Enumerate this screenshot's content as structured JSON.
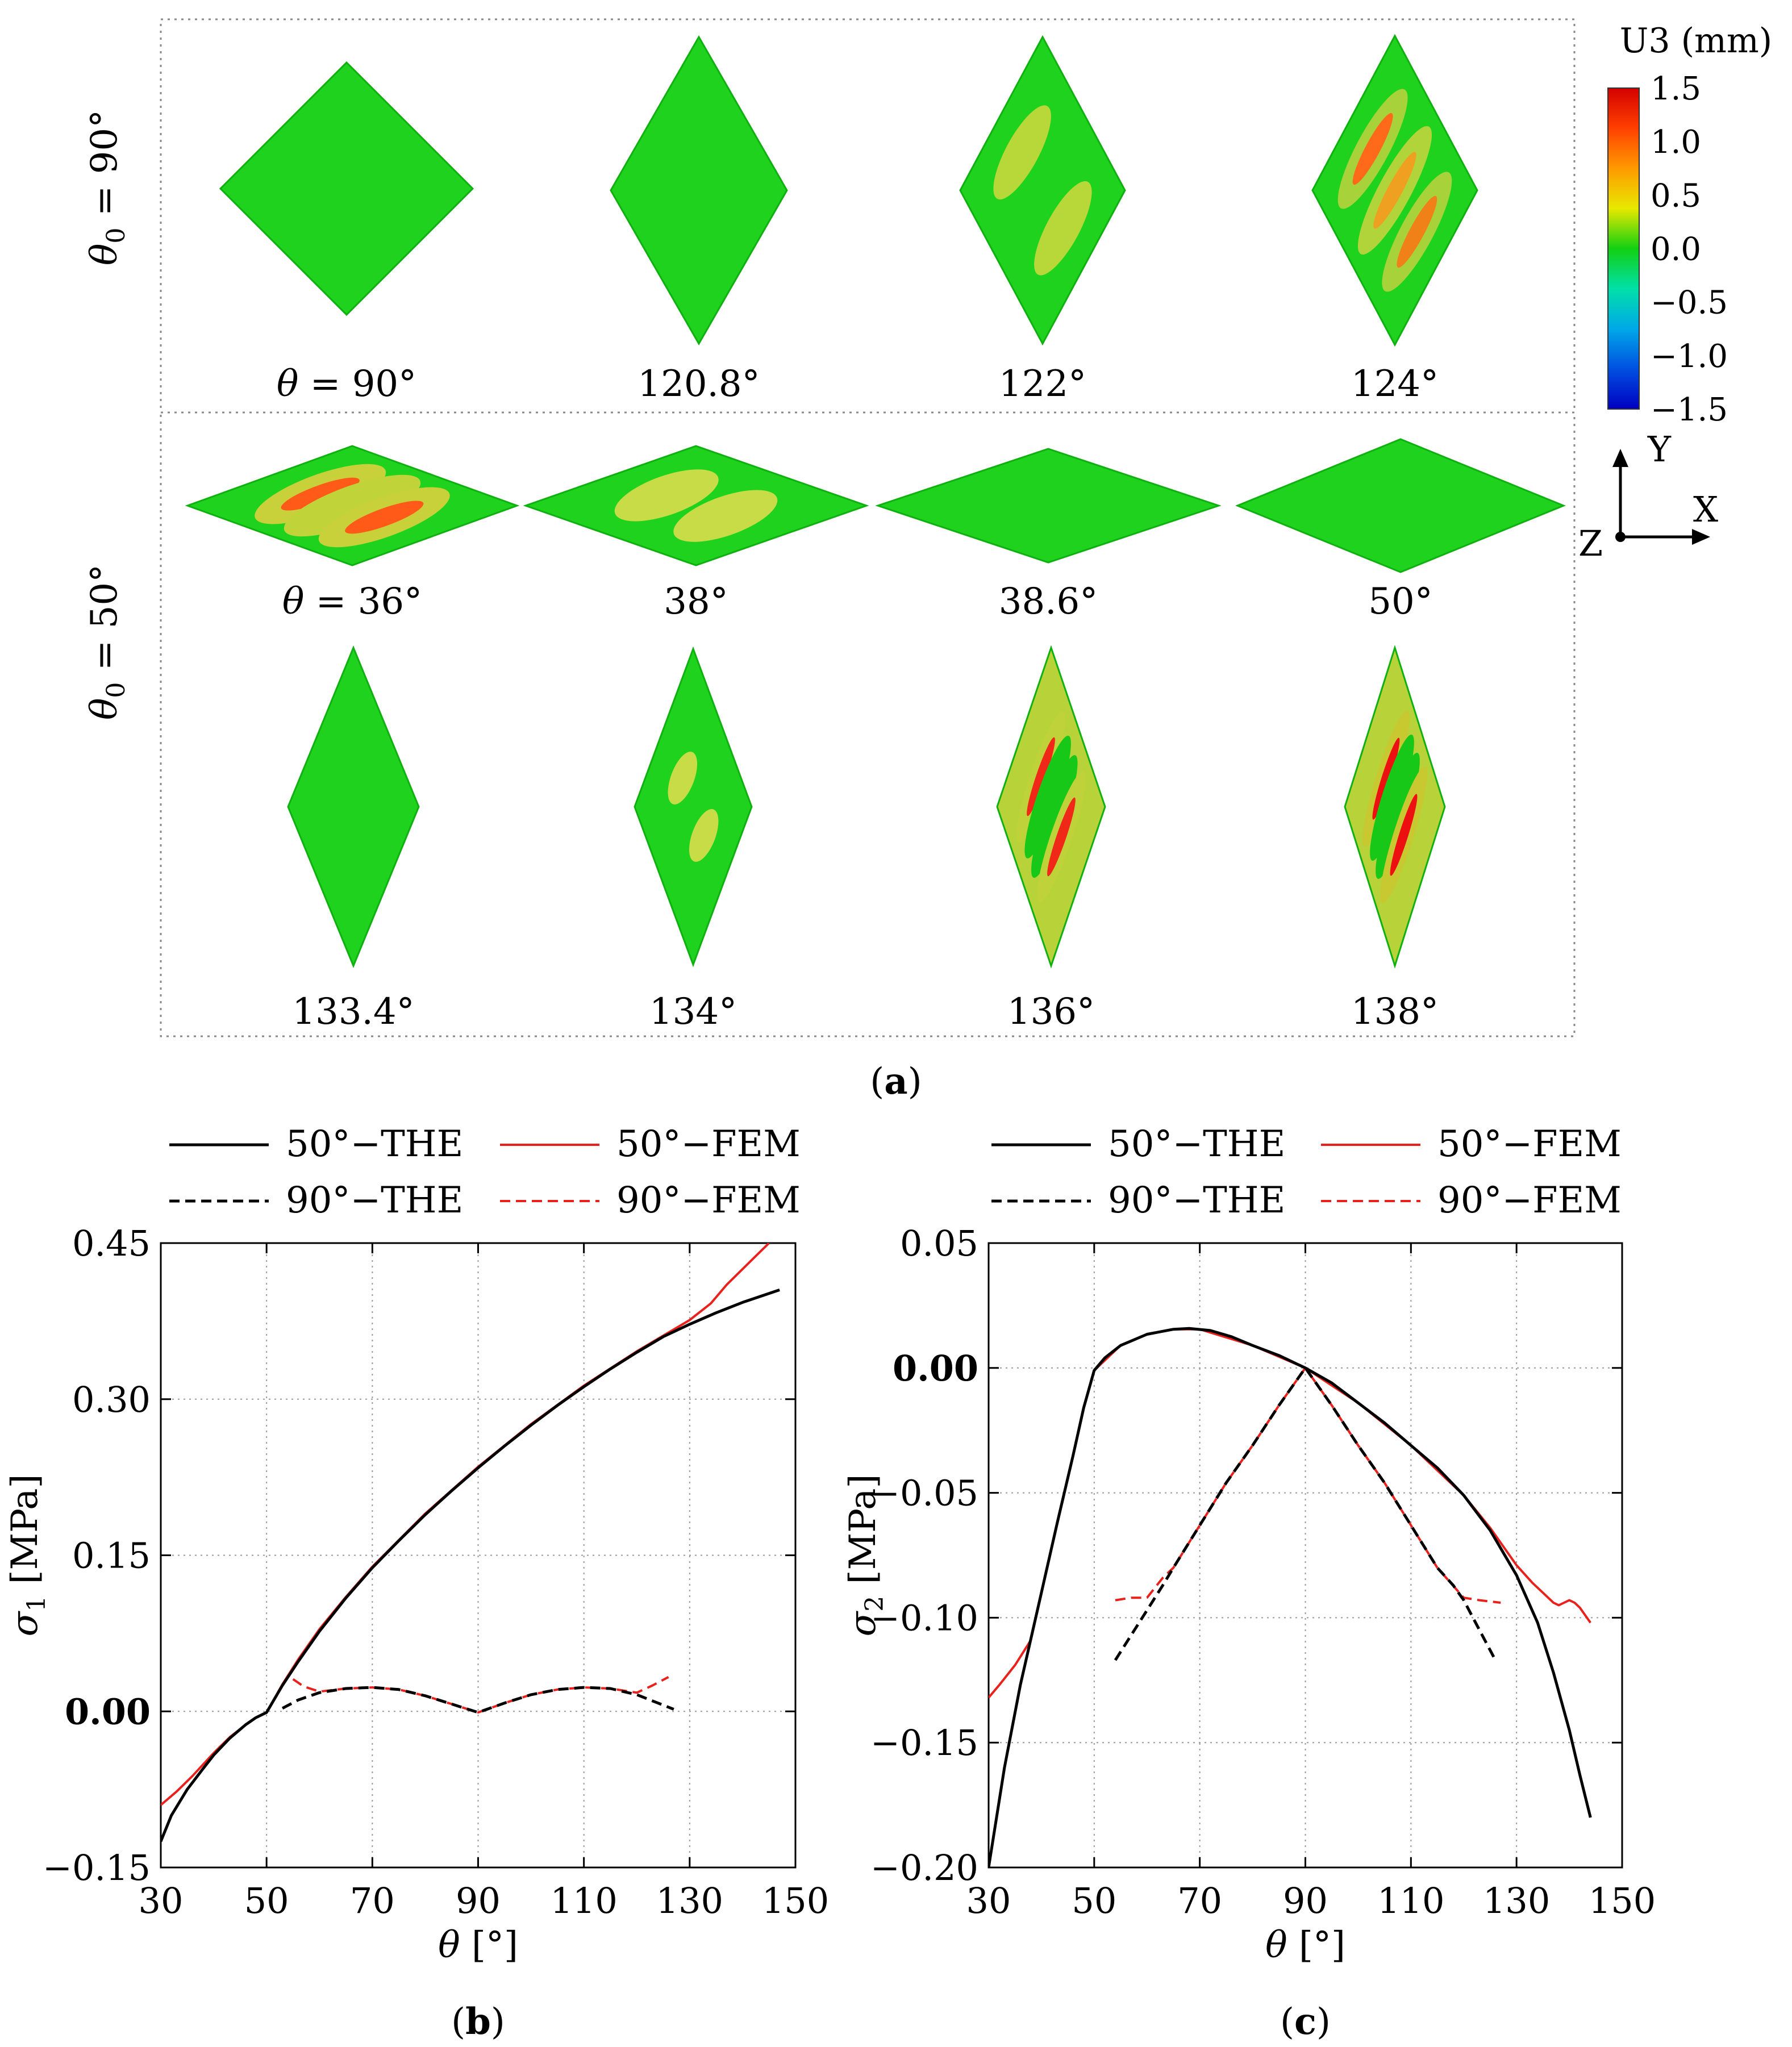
{
  "panel_a": {
    "caption": "(a)",
    "caption_parts": [
      "(",
      "a",
      ")"
    ],
    "group1_label": "θ0 = 90°",
    "group1_label_parts": [
      "θ",
      "0",
      " = 90°"
    ],
    "group2_label": "θ0 = 50°",
    "group2_label_parts": [
      "θ",
      "0",
      " = 50°"
    ],
    "colorbar": {
      "title": "U3 (mm)",
      "ticks": [
        "1.5",
        "1.0",
        "0.5",
        "0.0",
        "−0.5",
        "−1.0",
        "−1.5"
      ],
      "colors": [
        "#d40000",
        "#ff4000",
        "#ff9a00",
        "#e8e800",
        "#12d012",
        "#00e0a8",
        "#00a8e8",
        "#0050e0",
        "#0000c0"
      ]
    },
    "axes_triad": {
      "y": "Y",
      "x": "X",
      "z": "Z"
    },
    "row1": [
      {
        "label": "θ = 90°",
        "prefix": "θ",
        "value": " = 90°",
        "shape": "square"
      },
      {
        "label": "120.8°",
        "prefix": "",
        "value": "120.8°",
        "shape": "tall"
      },
      {
        "label": "122°",
        "prefix": "",
        "value": "122°",
        "shape": "tall2"
      },
      {
        "label": "124°",
        "prefix": "",
        "value": "124°",
        "shape": "tall3"
      }
    ],
    "row2": [
      {
        "label": "θ = 36°",
        "prefix": "θ",
        "value": " = 36°",
        "shape": "wide"
      },
      {
        "label": "38°",
        "prefix": "",
        "value": "38°",
        "shape": "wide"
      },
      {
        "label": "38.6°",
        "prefix": "",
        "value": "38.6°",
        "shape": "wide"
      },
      {
        "label": "50°",
        "prefix": "",
        "value": "50°",
        "shape": "wide2"
      }
    ],
    "row3": [
      {
        "label": "133.4°",
        "prefix": "",
        "value": "133.4°",
        "shape": "tall4"
      },
      {
        "label": "134°",
        "prefix": "",
        "value": "134°",
        "shape": "tall4"
      },
      {
        "label": "136°",
        "prefix": "",
        "value": "136°",
        "shape": "tall4"
      },
      {
        "label": "138°",
        "prefix": "",
        "value": "138°",
        "shape": "tall4"
      }
    ]
  },
  "chart_data": [
    {
      "type": "line",
      "panel": "b",
      "caption": "(b)",
      "caption_parts": [
        "(",
        "b",
        ")"
      ],
      "xlabel": "θ [°]",
      "xlabel_parts": [
        "θ",
        " [°]"
      ],
      "ylabel": "σ1 [MPa]",
      "ylabel_parts": [
        "σ",
        "1",
        " [MPa]"
      ],
      "xlim": [
        30,
        150
      ],
      "ylim": [
        -0.15,
        0.45
      ],
      "xticks": [
        30,
        50,
        70,
        90,
        110,
        130,
        150
      ],
      "yticks": [
        -0.15,
        0.0,
        0.15,
        0.3,
        0.45
      ],
      "xtick_labels": [
        "30",
        "50",
        "70",
        "90",
        "110",
        "130",
        "150"
      ],
      "ytick_labels": [
        "−0.15",
        "0.00",
        "0.15",
        "0.30",
        "0.45"
      ],
      "grid": true,
      "legend": [
        "50°−THE",
        "50°−FEM",
        "90°−THE",
        "90°−FEM"
      ],
      "series": [
        {
          "name": "50°−THE",
          "color": "#000000",
          "dash": "solid",
          "x": [
            30,
            32,
            35,
            38,
            40,
            43,
            46,
            48,
            50,
            53,
            56,
            60,
            65,
            70,
            75,
            80,
            85,
            90,
            95,
            100,
            105,
            110,
            115,
            120,
            125,
            130,
            135,
            140,
            147
          ],
          "y": [
            -0.125,
            -0.1,
            -0.075,
            -0.055,
            -0.042,
            -0.026,
            -0.013,
            -0.006,
            -0.001,
            0.025,
            0.048,
            0.077,
            0.109,
            0.138,
            0.164,
            0.189,
            0.212,
            0.234,
            0.255,
            0.275,
            0.294,
            0.312,
            0.329,
            0.345,
            0.36,
            0.372,
            0.383,
            0.393,
            0.405
          ]
        },
        {
          "name": "50°−FEM",
          "color": "#e8211c",
          "dash": "solid",
          "x": [
            30,
            33,
            36,
            40,
            43,
            46,
            48,
            50,
            53,
            56,
            60,
            65,
            70,
            80,
            90,
            100,
            110,
            120,
            125,
            130,
            134,
            137,
            140,
            143,
            145
          ],
          "y": [
            -0.09,
            -0.077,
            -0.062,
            -0.04,
            -0.025,
            -0.013,
            -0.006,
            -0.001,
            0.026,
            0.05,
            0.079,
            0.11,
            0.139,
            0.19,
            0.235,
            0.276,
            0.313,
            0.346,
            0.361,
            0.376,
            0.392,
            0.41,
            0.425,
            0.44,
            0.45
          ]
        },
        {
          "name": "90°−THE",
          "color": "#000000",
          "dash": "dashed",
          "x": [
            53,
            56,
            60,
            65,
            70,
            75,
            80,
            85,
            90,
            95,
            100,
            105,
            110,
            115,
            120,
            124,
            127
          ],
          "y": [
            0.003,
            0.011,
            0.018,
            0.022,
            0.023,
            0.021,
            0.015,
            0.007,
            -0.001,
            0.008,
            0.016,
            0.021,
            0.023,
            0.022,
            0.016,
            0.008,
            0.002
          ]
        },
        {
          "name": "90°−FEM",
          "color": "#e8211c",
          "dash": "dashed",
          "x": [
            55,
            57,
            60,
            65,
            70,
            75,
            80,
            85,
            90,
            95,
            100,
            105,
            110,
            115,
            120,
            123,
            126
          ],
          "y": [
            0.031,
            0.024,
            0.019,
            0.022,
            0.023,
            0.021,
            0.015,
            0.007,
            -0.001,
            0.008,
            0.016,
            0.021,
            0.023,
            0.022,
            0.018,
            0.025,
            0.033
          ]
        }
      ]
    },
    {
      "type": "line",
      "panel": "c",
      "caption": "(c)",
      "caption_parts": [
        "(",
        "c",
        ")"
      ],
      "xlabel": "θ [°]",
      "xlabel_parts": [
        "θ",
        " [°]"
      ],
      "ylabel": "σ2 [MPa]",
      "ylabel_parts": [
        "σ",
        "2",
        " [MPa]"
      ],
      "xlim": [
        30,
        150
      ],
      "ylim": [
        -0.2,
        0.05
      ],
      "xticks": [
        30,
        50,
        70,
        90,
        110,
        130,
        150
      ],
      "yticks": [
        -0.2,
        -0.15,
        -0.1,
        -0.05,
        0.0,
        0.05
      ],
      "xtick_labels": [
        "30",
        "50",
        "70",
        "90",
        "110",
        "130",
        "150"
      ],
      "ytick_labels": [
        "−0.20",
        "−0.15",
        "−0.10",
        "−0.05",
        "0.00",
        "0.05"
      ],
      "grid": true,
      "legend": [
        "50°−THE",
        "50°−FEM",
        "90°−THE",
        "90°−FEM"
      ],
      "series": [
        {
          "name": "50°−THE",
          "color": "#000000",
          "dash": "solid",
          "x": [
            30,
            33,
            36,
            40,
            43,
            46,
            48,
            50,
            52,
            55,
            60,
            65,
            68,
            72,
            76,
            80,
            85,
            90,
            95,
            100,
            105,
            110,
            115,
            120,
            125,
            130,
            134,
            137,
            140,
            142,
            144
          ],
          "y": [
            -0.2,
            -0.16,
            -0.127,
            -0.09,
            -0.062,
            -0.035,
            -0.016,
            -0.001,
            0.004,
            0.009,
            0.0135,
            0.0155,
            0.0158,
            0.015,
            0.0125,
            0.009,
            0.005,
            0.0,
            -0.006,
            -0.014,
            -0.022,
            -0.031,
            -0.04,
            -0.051,
            -0.065,
            -0.083,
            -0.102,
            -0.122,
            -0.145,
            -0.163,
            -0.18
          ]
        },
        {
          "name": "50°−FEM",
          "color": "#e8211c",
          "dash": "solid",
          "x": [
            30,
            32,
            35,
            38,
            40,
            43,
            46,
            48,
            50,
            55,
            60,
            65,
            70,
            80,
            90,
            100,
            110,
            120,
            125,
            130,
            133,
            135,
            137,
            138,
            139,
            140,
            141,
            142,
            143,
            144
          ],
          "y": [
            -0.132,
            -0.127,
            -0.119,
            -0.109,
            -0.09,
            -0.062,
            -0.035,
            -0.016,
            -0.001,
            0.009,
            0.0135,
            0.0155,
            0.0155,
            0.009,
            0.0,
            -0.014,
            -0.031,
            -0.051,
            -0.064,
            -0.079,
            -0.086,
            -0.09,
            -0.094,
            -0.095,
            -0.094,
            -0.093,
            -0.094,
            -0.096,
            -0.099,
            -0.102
          ]
        },
        {
          "name": "90°−THE",
          "color": "#000000",
          "dash": "dashed",
          "x": [
            54,
            57,
            60,
            63,
            65,
            70,
            75,
            80,
            85,
            90,
            95,
            100,
            105,
            110,
            115,
            118,
            120,
            122,
            124,
            126
          ],
          "y": [
            -0.117,
            -0.107,
            -0.097,
            -0.087,
            -0.08,
            -0.063,
            -0.046,
            -0.031,
            -0.015,
            0.0,
            -0.015,
            -0.031,
            -0.046,
            -0.063,
            -0.08,
            -0.087,
            -0.093,
            -0.101,
            -0.109,
            -0.117
          ]
        },
        {
          "name": "90°−FEM",
          "color": "#e8211c",
          "dash": "dashed",
          "x": [
            54,
            57,
            60,
            63,
            65,
            70,
            75,
            80,
            85,
            90,
            95,
            100,
            105,
            110,
            115,
            120,
            123,
            127
          ],
          "y": [
            -0.093,
            -0.092,
            -0.092,
            -0.084,
            -0.08,
            -0.063,
            -0.046,
            -0.031,
            -0.015,
            0.0,
            -0.015,
            -0.031,
            -0.046,
            -0.063,
            -0.08,
            -0.092,
            -0.093,
            -0.094
          ]
        }
      ]
    }
  ]
}
